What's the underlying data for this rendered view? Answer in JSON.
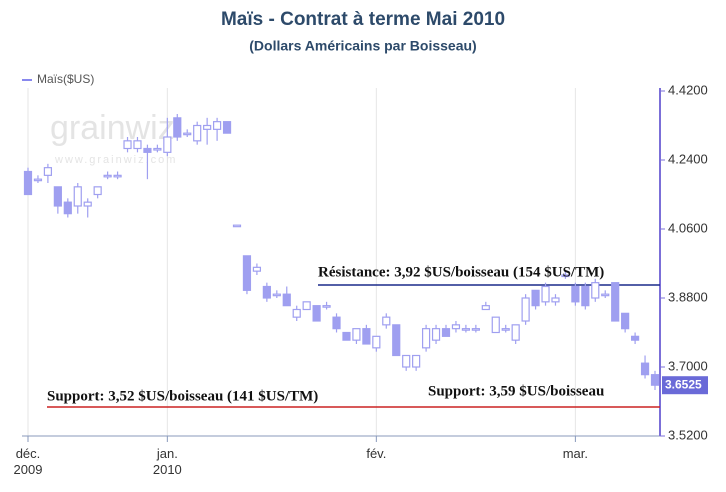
{
  "chart_data": {
    "type": "candlestick",
    "title": "Maïs - Contrat à terme Mai 2010",
    "subtitle": "(Dollars Américains par Boisseau)",
    "watermark": [
      "grainwiz",
      "www.grainwiz.com"
    ],
    "annotations": [
      "Résistance: 3,92 $US/boisseau (154 $US/TM)",
      "Support: 3,52 $US/boisseau (141 $US/TM)",
      "Support: 3,59 $US/boisseau"
    ],
    "categories": [
      "déc.\n2009",
      null,
      null,
      null,
      null,
      null,
      null,
      null,
      null,
      null,
      null,
      null,
      null,
      null,
      "jan.\n2010",
      null,
      null,
      null,
      null,
      null,
      null,
      null,
      null,
      null,
      null,
      null,
      null,
      null,
      null,
      null,
      null,
      null,
      null,
      null,
      null,
      "fév.",
      null,
      null,
      null,
      null,
      null,
      null,
      null,
      null,
      null,
      null,
      null,
      null,
      null,
      null,
      null,
      null,
      null,
      null,
      null,
      "mar.",
      null,
      null,
      null,
      null,
      null,
      null,
      null,
      null
    ],
    "series": [
      {
        "name": "Maïs($US)",
        "color": "#9f9ff0",
        "open": [
          4.21,
          4.19,
          4.2,
          4.17,
          4.13,
          4.12,
          4.12,
          4.15,
          4.2,
          4.2,
          4.27,
          4.27,
          4.27,
          4.27,
          4.26,
          4.35,
          4.31,
          4.29,
          4.32,
          4.32,
          4.34,
          4.07,
          3.99,
          3.95,
          3.91,
          3.89,
          3.89,
          3.83,
          3.85,
          3.86,
          3.86,
          3.83,
          3.79,
          3.77,
          3.8,
          3.75,
          3.81,
          3.81,
          3.7,
          3.7,
          3.75,
          3.77,
          3.8,
          3.8,
          3.8,
          3.8,
          3.85,
          3.79,
          3.8,
          3.77,
          3.82,
          3.9,
          3.87,
          3.87,
          3.94,
          3.91,
          3.91,
          3.88,
          3.89,
          3.92,
          3.84,
          3.78,
          3.71,
          3.68
        ],
        "high": [
          4.22,
          4.2,
          4.23,
          4.17,
          4.14,
          4.18,
          4.14,
          4.17,
          4.21,
          4.21,
          4.3,
          4.3,
          4.28,
          4.28,
          4.35,
          4.36,
          4.32,
          4.34,
          4.35,
          4.35,
          4.34,
          4.07,
          3.99,
          3.97,
          3.92,
          3.9,
          3.91,
          3.86,
          3.87,
          3.86,
          3.87,
          3.84,
          3.79,
          3.8,
          3.81,
          3.78,
          3.84,
          3.81,
          3.73,
          3.73,
          3.81,
          3.81,
          3.81,
          3.82,
          3.81,
          3.81,
          3.87,
          3.83,
          3.81,
          3.81,
          3.89,
          3.9,
          3.92,
          3.89,
          3.95,
          3.92,
          3.92,
          3.93,
          3.9,
          3.92,
          3.84,
          3.79,
          3.73,
          3.69
        ],
        "low": [
          4.15,
          4.18,
          4.18,
          4.1,
          4.09,
          4.1,
          4.09,
          4.14,
          4.19,
          4.19,
          4.26,
          4.26,
          4.19,
          4.26,
          4.25,
          4.29,
          4.3,
          4.28,
          4.28,
          4.29,
          4.31,
          4.07,
          3.89,
          3.94,
          3.87,
          3.88,
          3.86,
          3.82,
          3.85,
          3.82,
          3.85,
          3.79,
          3.77,
          3.76,
          3.76,
          3.74,
          3.8,
          3.73,
          3.69,
          3.69,
          3.74,
          3.76,
          3.78,
          3.79,
          3.79,
          3.79,
          3.85,
          3.79,
          3.79,
          3.76,
          3.81,
          3.85,
          3.86,
          3.86,
          3.93,
          3.86,
          3.85,
          3.87,
          3.88,
          3.82,
          3.79,
          3.76,
          3.67,
          3.64
        ],
        "close": [
          4.15,
          4.19,
          4.22,
          4.12,
          4.1,
          4.17,
          4.13,
          4.17,
          4.2,
          4.2,
          4.29,
          4.29,
          4.26,
          4.27,
          4.3,
          4.3,
          4.31,
          4.33,
          4.33,
          4.34,
          4.31,
          4.07,
          3.9,
          3.96,
          3.88,
          3.89,
          3.86,
          3.85,
          3.87,
          3.82,
          3.86,
          3.8,
          3.77,
          3.8,
          3.76,
          3.78,
          3.83,
          3.73,
          3.73,
          3.73,
          3.8,
          3.8,
          3.78,
          3.81,
          3.8,
          3.8,
          3.86,
          3.83,
          3.8,
          3.81,
          3.88,
          3.86,
          3.91,
          3.88,
          3.94,
          3.87,
          3.86,
          3.92,
          3.89,
          3.82,
          3.8,
          3.77,
          3.68,
          3.6525
        ]
      }
    ],
    "last_value": 3.6525,
    "ylim": [
      3.52,
      4.42
    ],
    "yticks": [
      {
        "value": 3.52,
        "label": "3.5200"
      },
      {
        "value": 3.7,
        "label": "3.7000"
      },
      {
        "value": 3.88,
        "label": "3.8800"
      },
      {
        "value": 4.06,
        "label": "4.0600"
      },
      {
        "value": 4.24,
        "label": "4.2400"
      },
      {
        "value": 4.42,
        "label": "4.4200"
      }
    ],
    "grid": true
  }
}
